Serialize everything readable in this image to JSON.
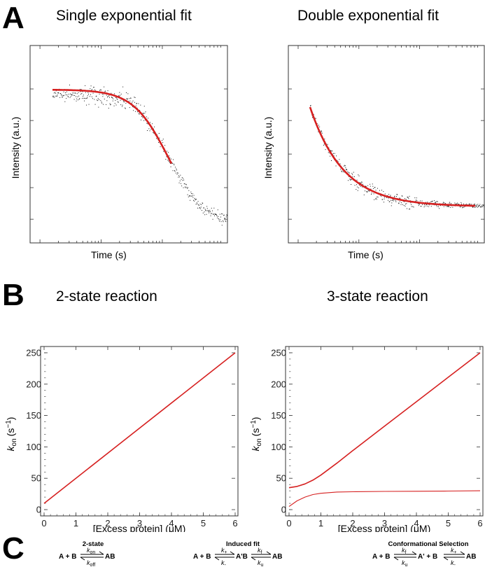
{
  "panels": {
    "a": "A",
    "b": "B",
    "c": "C"
  },
  "panel_a": {
    "left_title": "Single exponential fit",
    "right_title": "Double exponential fit",
    "xlabel": "Time (s)",
    "ylabel": "Intensity (a.u.)"
  },
  "panel_b": {
    "left_title": "2-state reaction",
    "right_title": "3-state reaction"
  },
  "panel_c": {
    "two_state": {
      "title": "2-state",
      "reactants": "A + B",
      "product": "AB",
      "k_forward": "on",
      "k_reverse": "off"
    },
    "induced_fit": {
      "title": "Induced fit",
      "reactants": "A + B",
      "intermediate": "A'B",
      "product": "AB",
      "k1_forward": "+",
      "k1_reverse": "-",
      "k2_forward": "f",
      "k2_reverse": "u"
    },
    "conformational_selection": {
      "title": "Conformational Selection",
      "reactants": "A + B",
      "intermediate": "A' + B",
      "product": "AB",
      "k1_forward": "f",
      "k1_reverse": "u",
      "k2_forward": "+",
      "k2_reverse": "-"
    }
  },
  "colors": {
    "fit": "#d62020",
    "noise": "#000000",
    "axis": "#222222"
  },
  "chart_data": [
    {
      "type": "scatter",
      "title": "Single exponential fit",
      "xlabel": "Time (s)",
      "ylabel": "Intensity (a.u.)",
      "x_scale": "log",
      "y_ticks_labeled": false,
      "series": [
        {
          "name": "data",
          "style": "noisy points",
          "description": "sigmoidal decay on log time axis"
        },
        {
          "name": "fit",
          "style": "red line",
          "model": "single exponential"
        }
      ]
    },
    {
      "type": "scatter",
      "title": "Double exponential fit",
      "xlabel": "Time (s)",
      "ylabel": "Intensity (a.u.)",
      "x_scale": "log",
      "y_ticks_labeled": false,
      "series": [
        {
          "name": "data",
          "style": "noisy points"
        },
        {
          "name": "fit",
          "style": "red line",
          "model": "double exponential"
        }
      ]
    },
    {
      "type": "line",
      "title": "2-state reaction",
      "xlabel": "[Excess protein] (μM)",
      "ylabel_base": "k",
      "ylabel_sub": "on",
      "ylabel_unit": "(s",
      "ylabel_sup": "−1",
      "ylabel_close": ")",
      "xlim": [
        0,
        6
      ],
      "ylim": [
        -10,
        260
      ],
      "xticks": [
        "0",
        "1",
        "2",
        "3",
        "4",
        "5",
        "6"
      ],
      "yticks": [
        "0",
        "50",
        "100",
        "150",
        "200",
        "250"
      ],
      "series": [
        {
          "name": "kon",
          "x": [
            0,
            6
          ],
          "y": [
            10,
            250
          ]
        }
      ]
    },
    {
      "type": "line",
      "title": "3-state reaction",
      "xlabel": "[Excess protein] (μM)",
      "ylabel_base": "k",
      "ylabel_sub": "on",
      "ylabel_unit": "(s",
      "ylabel_sup": "−1",
      "ylabel_close": ")",
      "xlim": [
        0,
        6
      ],
      "ylim": [
        -10,
        260
      ],
      "xticks": [
        "0",
        "1",
        "2",
        "3",
        "4",
        "5",
        "6"
      ],
      "yticks": [
        "0",
        "50",
        "100",
        "150",
        "200",
        "250"
      ],
      "series": [
        {
          "name": "fast phase",
          "x": [
            0,
            0.25,
            0.5,
            0.75,
            1,
            1.5,
            2,
            3,
            4,
            5,
            6
          ],
          "y": [
            35,
            37,
            41,
            47,
            55,
            74,
            94,
            133,
            172,
            211,
            250
          ]
        },
        {
          "name": "slow phase",
          "x": [
            0,
            0.25,
            0.5,
            0.75,
            1,
            1.5,
            2,
            3,
            4,
            5,
            6
          ],
          "y": [
            5,
            14,
            20,
            24,
            26,
            28,
            28.5,
            29,
            29.3,
            29.6,
            30
          ]
        }
      ]
    }
  ]
}
